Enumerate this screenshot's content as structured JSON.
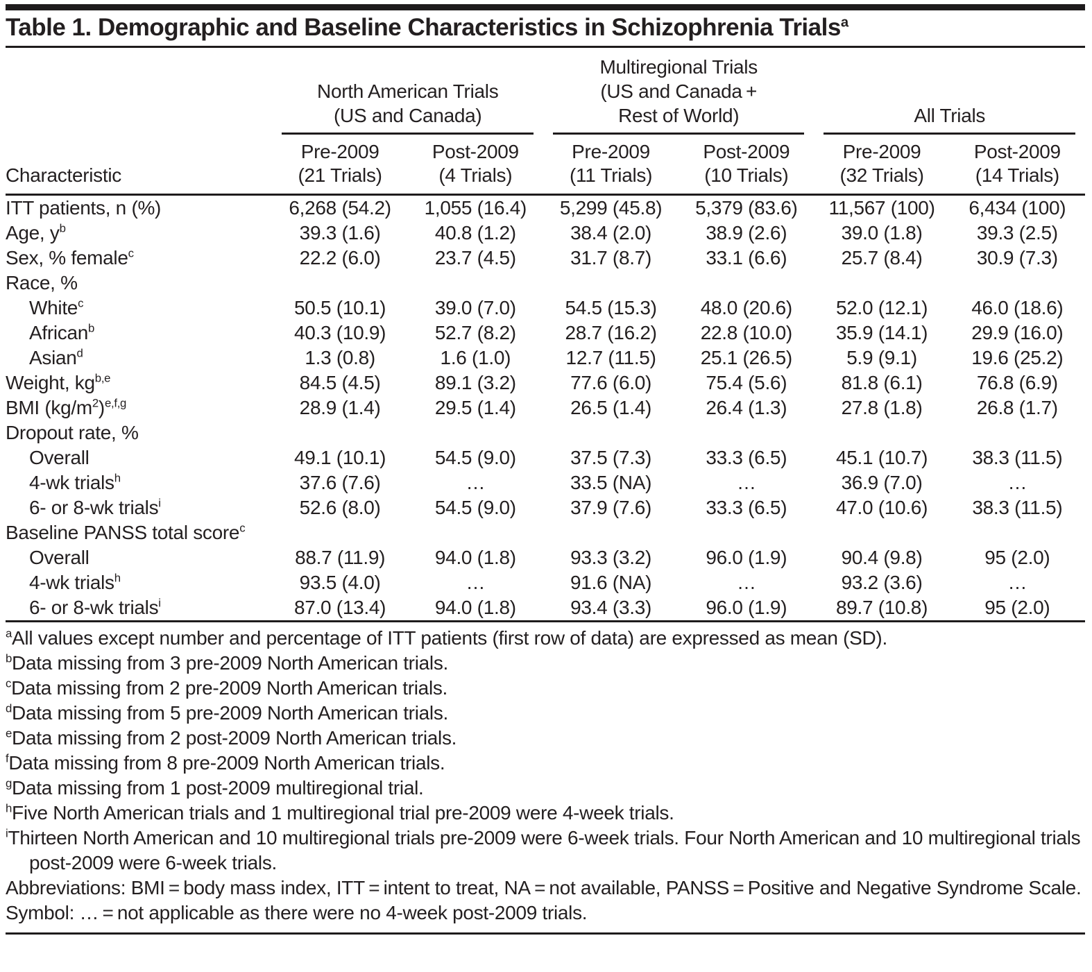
{
  "title": {
    "text": "Table 1. Demographic and Baseline Characteristics in Schizophrenia Trials",
    "sup": "a"
  },
  "header": {
    "characteristic_label": "Characteristic",
    "groups": [
      {
        "name": "north-american-trials",
        "lines": [
          "North American Trials",
          "(US and Canada)"
        ]
      },
      {
        "name": "multiregional-trials",
        "lines": [
          "Multiregional Trials",
          "(US and Canada +",
          "Rest of World)"
        ]
      },
      {
        "name": "all-trials",
        "lines": [
          "All Trials"
        ]
      }
    ],
    "subcolumns": [
      {
        "line1": "Pre-2009",
        "line2": "(21 Trials)"
      },
      {
        "line1": "Post-2009",
        "line2": "(4 Trials)"
      },
      {
        "line1": "Pre-2009",
        "line2": "(11 Trials)"
      },
      {
        "line1": "Post-2009",
        "line2": "(10 Trials)"
      },
      {
        "line1": "Pre-2009",
        "line2": "(32 Trials)"
      },
      {
        "line1": "Post-2009",
        "line2": "(14 Trials)"
      }
    ]
  },
  "rows": [
    {
      "indent": false,
      "label": [
        {
          "t": "ITT patients, n (%)"
        }
      ],
      "values": [
        "6,268 (54.2)",
        "1,055 (16.4)",
        "5,299 (45.8)",
        "5,379 (83.6)",
        "11,567 (100)",
        "6,434 (100)"
      ]
    },
    {
      "indent": false,
      "label": [
        {
          "t": "Age, y"
        },
        {
          "sup": "b"
        }
      ],
      "values": [
        "39.3 (1.6)",
        "40.8 (1.2)",
        "38.4 (2.0)",
        "38.9 (2.6)",
        "39.0 (1.8)",
        "39.3 (2.5)"
      ]
    },
    {
      "indent": false,
      "label": [
        {
          "t": "Sex, % female"
        },
        {
          "sup": "c"
        }
      ],
      "values": [
        "22.2 (6.0)",
        "23.7 (4.5)",
        "31.7 (8.7)",
        "33.1 (6.6)",
        "25.7 (8.4)",
        "30.9 (7.3)"
      ]
    },
    {
      "indent": false,
      "label": [
        {
          "t": "Race, %"
        }
      ],
      "values": [
        "",
        "",
        "",
        "",
        "",
        ""
      ]
    },
    {
      "indent": true,
      "label": [
        {
          "t": "White"
        },
        {
          "sup": "c"
        }
      ],
      "values": [
        "50.5 (10.1)",
        "39.0 (7.0)",
        "54.5 (15.3)",
        "48.0 (20.6)",
        "52.0 (12.1)",
        "46.0 (18.6)"
      ]
    },
    {
      "indent": true,
      "label": [
        {
          "t": "African"
        },
        {
          "sup": "b"
        }
      ],
      "values": [
        "40.3 (10.9)",
        "52.7 (8.2)",
        "28.7 (16.2)",
        "22.8 (10.0)",
        "35.9 (14.1)",
        "29.9 (16.0)"
      ]
    },
    {
      "indent": true,
      "label": [
        {
          "t": "Asian"
        },
        {
          "sup": "d"
        }
      ],
      "values": [
        "1.3 (0.8)",
        "1.6 (1.0)",
        "12.7 (11.5)",
        "25.1 (26.5)",
        "5.9 (9.1)",
        "19.6 (25.2)"
      ]
    },
    {
      "indent": false,
      "label": [
        {
          "t": "Weight, kg"
        },
        {
          "sup": "b,e"
        }
      ],
      "values": [
        "84.5 (4.5)",
        "89.1 (3.2)",
        "77.6 (6.0)",
        "75.4 (5.6)",
        "81.8 (6.1)",
        "76.8 (6.9)"
      ]
    },
    {
      "indent": false,
      "label": [
        {
          "t": "BMI (kg/m"
        },
        {
          "sup": "2"
        },
        {
          "t": ")"
        },
        {
          "sup": "e,f,g"
        }
      ],
      "values": [
        "28.9 (1.4)",
        "29.5 (1.4)",
        "26.5 (1.4)",
        "26.4 (1.3)",
        "27.8 (1.8)",
        "26.8 (1.7)"
      ]
    },
    {
      "indent": false,
      "label": [
        {
          "t": "Dropout rate, %"
        }
      ],
      "values": [
        "",
        "",
        "",
        "",
        "",
        ""
      ]
    },
    {
      "indent": true,
      "label": [
        {
          "t": "Overall"
        }
      ],
      "values": [
        "49.1 (10.1)",
        "54.5 (9.0)",
        "37.5 (7.3)",
        "33.3 (6.5)",
        "45.1 (10.7)",
        "38.3 (11.5)"
      ]
    },
    {
      "indent": true,
      "label": [
        {
          "t": "4-wk trials"
        },
        {
          "sup": "h"
        }
      ],
      "values": [
        "37.6 (7.6)",
        "…",
        "33.5 (NA)",
        "…",
        "36.9 (7.0)",
        "…"
      ]
    },
    {
      "indent": true,
      "label": [
        {
          "t": "6- or 8-wk trials"
        },
        {
          "sup": "i"
        }
      ],
      "values": [
        "52.6 (8.0)",
        "54.5 (9.0)",
        "37.9 (7.6)",
        "33.3 (6.5)",
        "47.0 (10.6)",
        "38.3 (11.5)"
      ]
    },
    {
      "indent": false,
      "label": [
        {
          "t": "Baseline PANSS total score"
        },
        {
          "sup": "c"
        }
      ],
      "values": [
        "",
        "",
        "",
        "",
        "",
        ""
      ]
    },
    {
      "indent": true,
      "label": [
        {
          "t": "Overall"
        }
      ],
      "values": [
        "88.7 (11.9)",
        "94.0 (1.8)",
        "93.3 (3.2)",
        "96.0 (1.9)",
        "90.4 (9.8)",
        "95 (2.0)"
      ]
    },
    {
      "indent": true,
      "label": [
        {
          "t": "4-wk trials"
        },
        {
          "sup": "h"
        }
      ],
      "values": [
        "93.5 (4.0)",
        "…",
        "91.6 (NA)",
        "…",
        "93.2 (3.6)",
        "…"
      ]
    },
    {
      "indent": true,
      "label": [
        {
          "t": "6- or 8-wk trials"
        },
        {
          "sup": "i"
        }
      ],
      "values": [
        "87.0 (13.4)",
        "94.0 (1.8)",
        "93.4 (3.3)",
        "96.0 (1.9)",
        "89.7 (10.8)",
        "95 (2.0)"
      ]
    }
  ],
  "footnotes": [
    {
      "sup": "a",
      "text": "All values except number and percentage of ITT patients (first row of data) are expressed as mean (SD)."
    },
    {
      "sup": "b",
      "text": "Data missing from 3 pre-2009 North American trials."
    },
    {
      "sup": "c",
      "text": "Data missing from 2 pre-2009 North American trials."
    },
    {
      "sup": "d",
      "text": "Data missing from 5 pre-2009 North American trials."
    },
    {
      "sup": "e",
      "text": "Data missing from 2 post-2009 North American trials."
    },
    {
      "sup": "f",
      "text": "Data missing from 8 pre-2009 North American trials."
    },
    {
      "sup": "g",
      "text": "Data missing from 1 post-2009 multiregional trial."
    },
    {
      "sup": "h",
      "text": "Five North American trials and 1 multiregional trial pre-2009 were 4-week trials."
    },
    {
      "sup": "i",
      "text": "Thirteen North American and 10 multiregional trials pre-2009 were 6-week trials. Four North American and 10 multiregional trials post-2009 were 6-week trials."
    },
    {
      "sup": "",
      "text": "Abbreviations: BMI = body mass index, ITT = intent to treat, NA = not available, PANSS = Positive and Negative Syndrome Scale."
    },
    {
      "sup": "",
      "text": "Symbol: … = not applicable as there were no 4-week post-2009 trials."
    }
  ]
}
